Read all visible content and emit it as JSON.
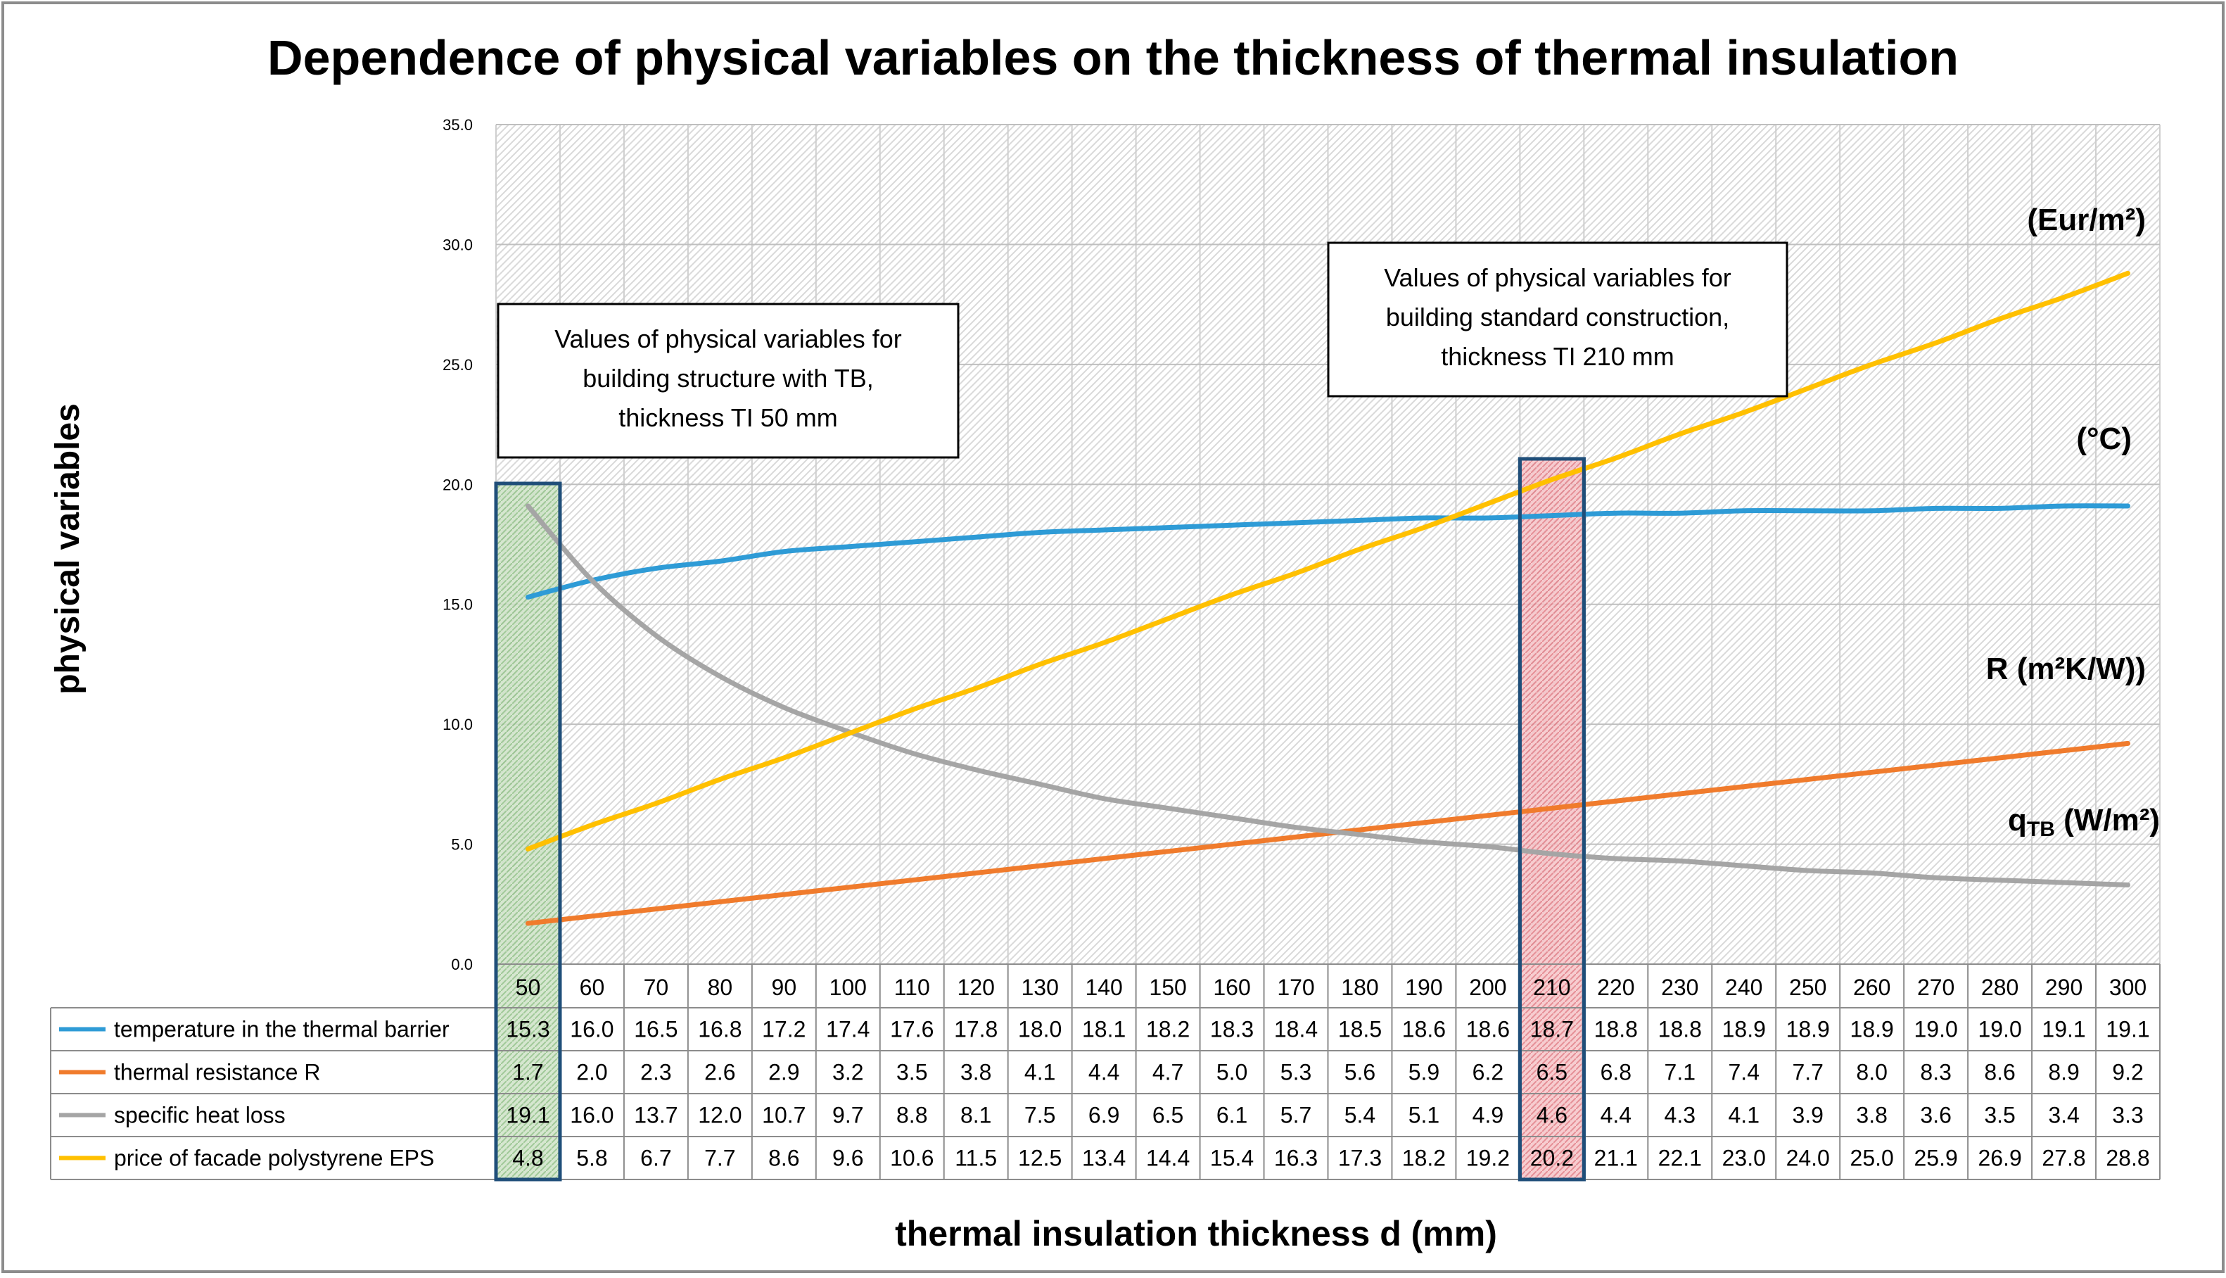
{
  "chart_data": {
    "type": "line",
    "title": "Dependence of physical variables on the thickness of thermal insulation",
    "xlabel": "thermal insulation thickness d (mm)",
    "ylabel": "physical variables",
    "ylim": [
      0,
      35
    ],
    "yticks": [
      "0.0",
      "5.0",
      "10.0",
      "15.0",
      "20.0",
      "25.0",
      "30.0",
      "35.0"
    ],
    "categories": [
      "50",
      "60",
      "70",
      "80",
      "90",
      "100",
      "110",
      "120",
      "130",
      "140",
      "150",
      "160",
      "170",
      "180",
      "190",
      "200",
      "210",
      "220",
      "230",
      "240",
      "250",
      "260",
      "270",
      "280",
      "290",
      "300"
    ],
    "series": [
      {
        "name": "temperature in the thermal barrier",
        "color": "#2E9BD6",
        "values": [
          15.3,
          16.0,
          16.5,
          16.8,
          17.2,
          17.4,
          17.6,
          17.8,
          18.0,
          18.1,
          18.2,
          18.3,
          18.4,
          18.5,
          18.6,
          18.6,
          18.7,
          18.8,
          18.8,
          18.9,
          18.9,
          18.9,
          19.0,
          19.0,
          19.1,
          19.1
        ],
        "labels": [
          "15.3",
          "16.0",
          "16.5",
          "16.8",
          "17.2",
          "17.4",
          "17.6",
          "17.8",
          "18.0",
          "18.1",
          "18.2",
          "18.3",
          "18.4",
          "18.5",
          "18.6",
          "18.6",
          "18.7",
          "18.8",
          "18.8",
          "18.9",
          "18.9",
          "18.9",
          "19.0",
          "19.0",
          "19.1",
          "19.1"
        ]
      },
      {
        "name": "thermal resistance R",
        "color": "#F07B2C",
        "values": [
          1.7,
          2.0,
          2.3,
          2.6,
          2.9,
          3.2,
          3.5,
          3.8,
          4.1,
          4.4,
          4.7,
          5.0,
          5.3,
          5.6,
          5.9,
          6.2,
          6.5,
          6.8,
          7.1,
          7.4,
          7.7,
          8.0,
          8.3,
          8.6,
          8.9,
          9.2
        ],
        "labels": [
          "1.7",
          "2.0",
          "2.3",
          "2.6",
          "2.9",
          "3.2",
          "3.5",
          "3.8",
          "4.1",
          "4.4",
          "4.7",
          "5.0",
          "5.3",
          "5.6",
          "5.9",
          "6.2",
          "6.5",
          "6.8",
          "7.1",
          "7.4",
          "7.7",
          "8.0",
          "8.3",
          "8.6",
          "8.9",
          "9.2"
        ]
      },
      {
        "name": "specific heat loss",
        "color": "#A5A5A5",
        "values": [
          19.1,
          16.0,
          13.7,
          12.0,
          10.7,
          9.7,
          8.8,
          8.1,
          7.5,
          6.9,
          6.5,
          6.1,
          5.7,
          5.4,
          5.1,
          4.9,
          4.6,
          4.4,
          4.3,
          4.1,
          3.9,
          3.8,
          3.6,
          3.5,
          3.4,
          3.3
        ],
        "labels": [
          "19.1",
          "16.0",
          "13.7",
          "12.0",
          "10.7",
          "9.7",
          "8.8",
          "8.1",
          "7.5",
          "6.9",
          "6.5",
          "6.1",
          "5.7",
          "5.4",
          "5.1",
          "4.9",
          "4.6",
          "4.4",
          "4.3",
          "4.1",
          "3.9",
          "3.8",
          "3.6",
          "3.5",
          "3.4",
          "3.3"
        ]
      },
      {
        "name": "price of facade polystyrene EPS",
        "color": "#FFC000",
        "values": [
          4.8,
          5.8,
          6.7,
          7.7,
          8.6,
          9.6,
          10.6,
          11.5,
          12.5,
          13.4,
          14.4,
          15.4,
          16.3,
          17.3,
          18.2,
          19.2,
          20.2,
          21.1,
          22.1,
          23.0,
          24.0,
          25.0,
          25.9,
          26.9,
          27.8,
          28.8
        ],
        "labels": [
          "4.8",
          "5.8",
          "6.7",
          "7.7",
          "8.6",
          "9.6",
          "10.6",
          "11.5",
          "12.5",
          "13.4",
          "14.4",
          "15.4",
          "16.3",
          "17.3",
          "18.2",
          "19.2",
          "20.2",
          "21.1",
          "22.1",
          "23.0",
          "24.0",
          "25.0",
          "25.9",
          "26.9",
          "27.8",
          "28.8"
        ]
      }
    ],
    "unit_labels": [
      {
        "text": "(Eur/m²)",
        "series": "price of facade polystyrene EPS"
      },
      {
        "text": "(°C)",
        "series": "temperature in the thermal barrier"
      },
      {
        "text": "R (m²K/W))",
        "series": "thermal resistance R"
      },
      {
        "text": "q",
        "sub": "TB",
        "tail": " (W/m²)",
        "series": "specific heat loss"
      }
    ],
    "annotations": [
      {
        "lines": [
          "Values of physical variables for",
          "building structure with TB,",
          "thickness TI 50 mm"
        ],
        "category": "50"
      },
      {
        "lines": [
          "Values of physical variables for",
          "building standard construction,",
          "thickness TI 210 mm"
        ],
        "category": "210"
      }
    ],
    "highlights": [
      {
        "category": "50",
        "fill": "#C9DFC2"
      },
      {
        "category": "210",
        "fill": "#F4B8BD"
      }
    ],
    "grid": true,
    "legend": "data table below chart"
  }
}
